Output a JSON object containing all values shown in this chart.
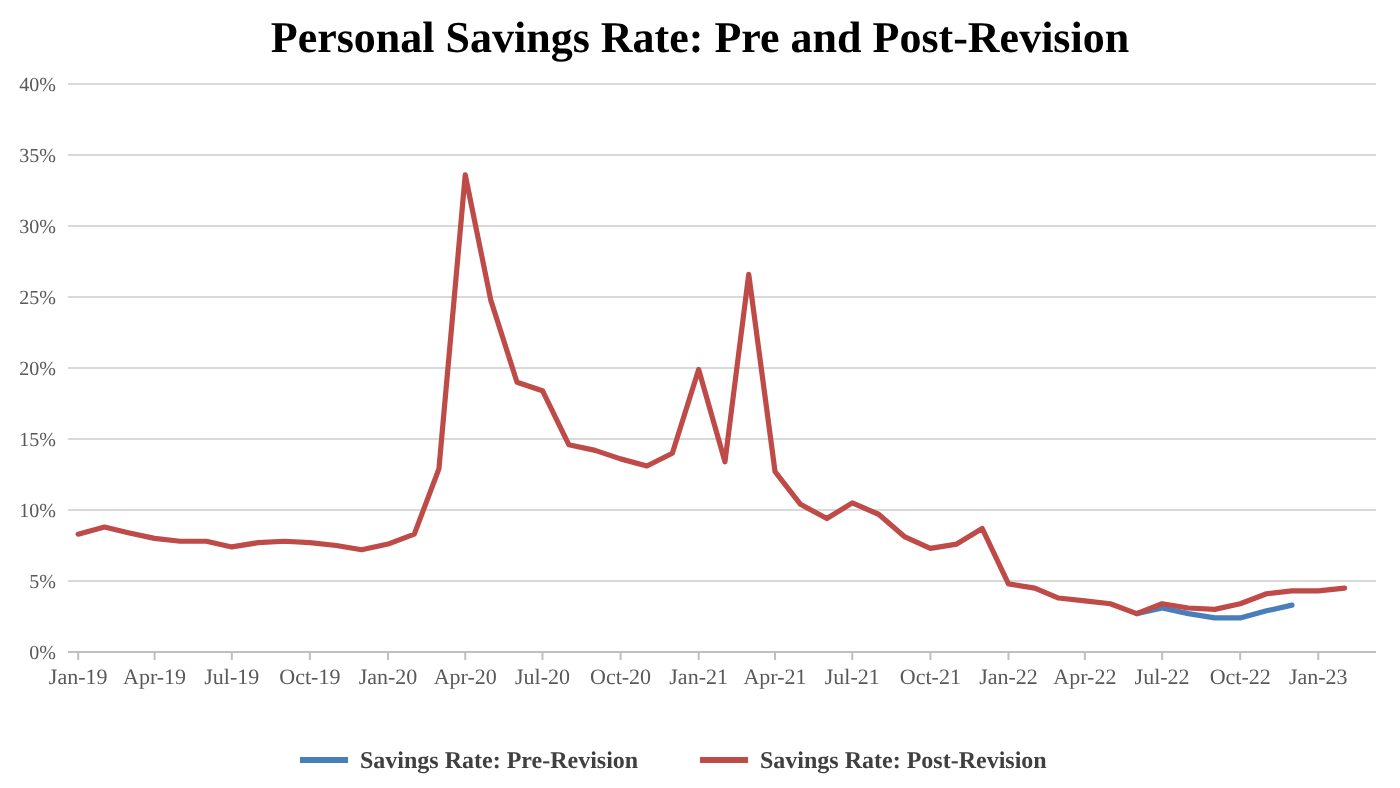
{
  "chart_data": {
    "type": "line",
    "title": "Personal Savings Rate: Pre and Post-Revision",
    "x": [
      "2019-01",
      "2019-02",
      "2019-03",
      "2019-04",
      "2019-05",
      "2019-06",
      "2019-07",
      "2019-08",
      "2019-09",
      "2019-10",
      "2019-11",
      "2019-12",
      "2020-01",
      "2020-02",
      "2020-03",
      "2020-04",
      "2020-05",
      "2020-06",
      "2020-07",
      "2020-08",
      "2020-09",
      "2020-10",
      "2020-11",
      "2020-12",
      "2021-01",
      "2021-02",
      "2021-03",
      "2021-04",
      "2021-05",
      "2021-06",
      "2021-07",
      "2021-08",
      "2021-09",
      "2021-10",
      "2021-11",
      "2021-12",
      "2022-01",
      "2022-02",
      "2022-03",
      "2022-04",
      "2022-05",
      "2022-06",
      "2022-07",
      "2022-08",
      "2022-09",
      "2022-10",
      "2022-11",
      "2022-12",
      "2023-01",
      "2023-02"
    ],
    "series": [
      {
        "name": "Savings Rate: Pre-Revision",
        "color": "#4a7ebb",
        "values": [
          null,
          null,
          null,
          null,
          null,
          null,
          null,
          null,
          null,
          null,
          null,
          null,
          null,
          null,
          null,
          null,
          null,
          null,
          null,
          null,
          null,
          null,
          null,
          null,
          null,
          null,
          null,
          null,
          null,
          null,
          null,
          null,
          null,
          null,
          null,
          null,
          null,
          null,
          null,
          null,
          null,
          2.7,
          3.1,
          2.7,
          2.4,
          2.4,
          2.9,
          3.3,
          null,
          null
        ]
      },
      {
        "name": "Savings Rate: Post-Revision",
        "color": "#be4b48",
        "values": [
          8.3,
          8.8,
          8.4,
          8.0,
          7.8,
          7.8,
          7.4,
          7.7,
          7.8,
          7.7,
          7.5,
          7.2,
          7.6,
          8.3,
          12.9,
          33.6,
          24.8,
          19.0,
          18.4,
          14.6,
          14.2,
          13.6,
          13.1,
          14.0,
          19.9,
          13.4,
          26.6,
          12.7,
          10.4,
          9.4,
          10.5,
          9.7,
          8.1,
          7.3,
          7.6,
          8.7,
          4.8,
          4.5,
          3.8,
          3.6,
          3.4,
          2.7,
          3.4,
          3.1,
          3.0,
          3.4,
          4.1,
          4.3,
          4.3,
          4.5
        ]
      }
    ],
    "xlim": [
      "2018-12-20",
      "2023-03-10"
    ],
    "xticks": [
      {
        "value": "2019-01",
        "label": "Jan-19"
      },
      {
        "value": "2019-04",
        "label": "Apr-19"
      },
      {
        "value": "2019-07",
        "label": "Jul-19"
      },
      {
        "value": "2019-10",
        "label": "Oct-19"
      },
      {
        "value": "2020-01",
        "label": "Jan-20"
      },
      {
        "value": "2020-04",
        "label": "Apr-20"
      },
      {
        "value": "2020-07",
        "label": "Jul-20"
      },
      {
        "value": "2020-10",
        "label": "Oct-20"
      },
      {
        "value": "2021-01",
        "label": "Jan-21"
      },
      {
        "value": "2021-04",
        "label": "Apr-21"
      },
      {
        "value": "2021-07",
        "label": "Jul-21"
      },
      {
        "value": "2021-10",
        "label": "Oct-21"
      },
      {
        "value": "2022-01",
        "label": "Jan-22"
      },
      {
        "value": "2022-04",
        "label": "Apr-22"
      },
      {
        "value": "2022-07",
        "label": "Jul-22"
      },
      {
        "value": "2022-10",
        "label": "Oct-22"
      },
      {
        "value": "2023-01",
        "label": "Jan-23"
      }
    ],
    "ylim": [
      0,
      40
    ],
    "yticks": [
      {
        "value": 0,
        "label": "0%"
      },
      {
        "value": 5,
        "label": "5%"
      },
      {
        "value": 10,
        "label": "10%"
      },
      {
        "value": 15,
        "label": "15%"
      },
      {
        "value": 20,
        "label": "20%"
      },
      {
        "value": 25,
        "label": "25%"
      },
      {
        "value": 30,
        "label": "30%"
      },
      {
        "value": 35,
        "label": "35%"
      },
      {
        "value": 40,
        "label": "40%"
      }
    ],
    "grid": "y",
    "legend": "bottom",
    "marker": "none",
    "line_style": "solid"
  }
}
